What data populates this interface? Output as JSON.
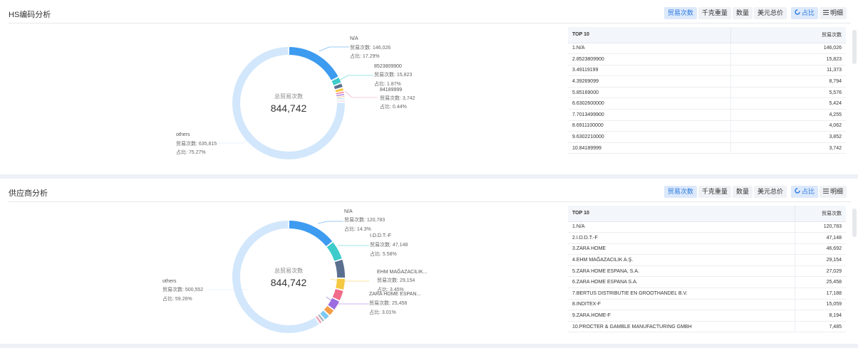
{
  "panels": [
    {
      "title": "HS编码分析",
      "toolbar": {
        "trade_count": "贸易次数",
        "weight": "千克重量",
        "quantity": "数量",
        "usd": "美元总价",
        "ratio": "占比",
        "detail": "明细"
      },
      "center_label": "总贸易次数",
      "center_value": "844,742",
      "labels": {
        "l0": {
          "name": "N/A",
          "count": "贸易次数: 146,026",
          "pct": "占比: 17.29%"
        },
        "l1": {
          "name": "8523809900",
          "count": "贸易次数: 15,823",
          "pct": "占比: 1.87%"
        },
        "l2": {
          "name": "84189999",
          "count": "贸易次数: 3,742",
          "pct": "占比: 0.44%"
        },
        "l3": {
          "name": "others",
          "count": "贸易次数: 635,815",
          "pct": "占比: 75.27%"
        }
      },
      "table": {
        "head_left": "TOP 10",
        "head_right": "贸易次数",
        "rows": [
          {
            "name": "1.N/A",
            "value": "146,026"
          },
          {
            "name": "2.8523809900",
            "value": "15,823"
          },
          {
            "name": "3.49119199",
            "value": "11,373"
          },
          {
            "name": "4.39269099",
            "value": "8,794"
          },
          {
            "name": "5.85169000",
            "value": "5,576"
          },
          {
            "name": "6.6302600000",
            "value": "5,424"
          },
          {
            "name": "7.7013499900",
            "value": "4,255"
          },
          {
            "name": "8.6911100000",
            "value": "4,062"
          },
          {
            "name": "9.6302210000",
            "value": "3,852"
          },
          {
            "name": "10.84189999",
            "value": "3,742"
          }
        ]
      },
      "slices": [
        146026,
        15823,
        11373,
        8794,
        5576,
        5424,
        4255,
        4062,
        3852,
        3742,
        635815
      ],
      "colors": [
        "#3d9bf0",
        "#3ecbcb",
        "#5a6f8f",
        "#f5c842",
        "#f26b8a",
        "#9c6ce0",
        "#f59e4a",
        "#7ec9f5",
        "#b0b8c4",
        "#e8a0b4",
        "#d2e7fb"
      ]
    },
    {
      "title": "供应商分析",
      "toolbar": {
        "trade_count": "贸易次数",
        "weight": "千克重量",
        "quantity": "数量",
        "usd": "美元总价",
        "ratio": "占比",
        "detail": "明细"
      },
      "center_label": "总贸易次数",
      "center_value": "844,742",
      "labels": {
        "l0": {
          "name": "N/A",
          "count": "贸易次数: 120,783",
          "pct": "占比: 14.3%"
        },
        "l1": {
          "name": "I.D.D.T.-F",
          "count": "贸易次数: 47,148",
          "pct": "占比: 5.58%"
        },
        "l2": {
          "name": "EHM MAĞAZACILIK...",
          "count": "贸易次数: 29,154",
          "pct": "占比: 3.45%"
        },
        "l3": {
          "name": "ZARA HOME ESPAN...",
          "count": "贸易次数: 25,458",
          "pct": "占比: 3.01%"
        },
        "l4": {
          "name": "others",
          "count": "贸易次数: 500,552",
          "pct": "占比: 59.26%"
        }
      },
      "table": {
        "head_left": "TOP 10",
        "head_right": "贸易次数",
        "rows": [
          {
            "name": "1.N/A",
            "value": "120,783"
          },
          {
            "name": "2.I.D.D.T.-F",
            "value": "47,148"
          },
          {
            "name": "3.ZARA HOME",
            "value": "46,692"
          },
          {
            "name": "4.EHM MAĞAZACILIK A.Ş.",
            "value": "29,154"
          },
          {
            "name": "5.ZARA HOME ESPANA, S.A.",
            "value": "27,029"
          },
          {
            "name": "6.ZARA HOME ESPANA S.A.",
            "value": "25,458"
          },
          {
            "name": "7.BERTUS DISTRIBUTIE EN GROOTHANDEL B.V.",
            "value": "17,188"
          },
          {
            "name": "8.INDITEX-F",
            "value": "15,059"
          },
          {
            "name": "9.ZARA.HOME-F",
            "value": "8,194"
          },
          {
            "name": "10.PROCTER & GAMBLE MANUFACTURING GMBH",
            "value": "7,485"
          }
        ]
      },
      "slices": [
        120783,
        47148,
        46692,
        29154,
        27029,
        25458,
        17188,
        15059,
        8194,
        7485,
        500552
      ],
      "colors": [
        "#3d9bf0",
        "#3ecbcb",
        "#5a6f8f",
        "#f5c842",
        "#f26b8a",
        "#9c6ce0",
        "#f59e4a",
        "#7ec9f5",
        "#b0b8c4",
        "#e8a0b4",
        "#d2e7fb"
      ]
    }
  ]
}
